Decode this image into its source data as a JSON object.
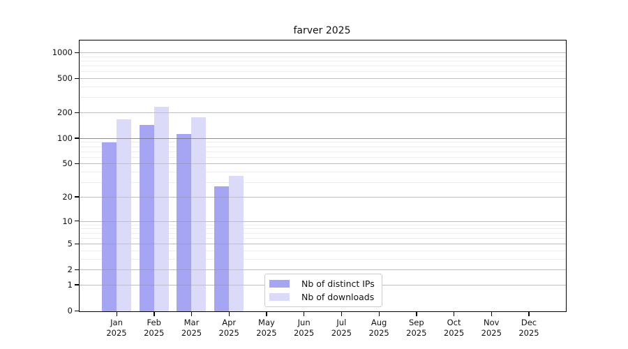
{
  "title": "farver 2025",
  "chart_data": {
    "type": "bar",
    "scale": "log1p",
    "title": "farver 2025",
    "xlabel": "",
    "ylabel": "",
    "ylim": [
      0,
      1430
    ],
    "grid": true,
    "legend_position": "bottom-center-inside",
    "categories": [
      "Jan 2025",
      "Feb 2025",
      "Mar 2025",
      "Apr 2025",
      "May 2025",
      "Jun 2025",
      "Jul 2025",
      "Aug 2025",
      "Sep 2025",
      "Oct 2025",
      "Nov 2025",
      "Dec 2025"
    ],
    "month_labels": [
      "Jan",
      "Feb",
      "Mar",
      "Apr",
      "May",
      "Jun",
      "Jul",
      "Aug",
      "Sep",
      "Oct",
      "Nov",
      "Dec"
    ],
    "year_label": "2025",
    "y_ticks": [
      0,
      1,
      2,
      5,
      10,
      20,
      50,
      100,
      200,
      500,
      1000
    ],
    "minor_gridline_values": [
      3,
      4,
      6,
      7,
      8,
      9,
      30,
      40,
      60,
      70,
      80,
      90,
      300,
      400,
      600,
      700,
      800,
      900
    ],
    "series": [
      {
        "name": "Nb of distinct IPs",
        "color": "#a5a5f4",
        "values": [
          89,
          142,
          112,
          27,
          null,
          null,
          null,
          null,
          null,
          null,
          null,
          null
        ]
      },
      {
        "name": "Nb of downloads",
        "color": "#dbdbf9",
        "values": [
          165,
          231,
          175,
          36,
          null,
          null,
          null,
          null,
          null,
          null,
          null,
          null
        ]
      }
    ]
  },
  "colors": {
    "distinct_ips": "#a5a5f4",
    "downloads": "#dbdbf9",
    "gridline_minor": "#ededed",
    "gridline_major": "#d8d8d8",
    "axis": "#000000"
  }
}
